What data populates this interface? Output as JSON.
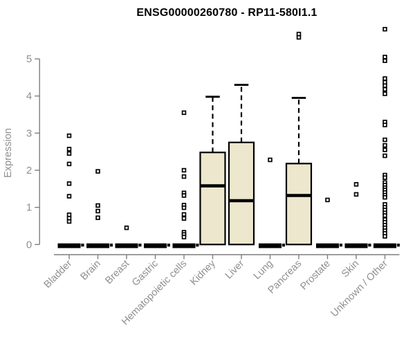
{
  "page": {
    "background": "#ffffff"
  },
  "chart_data": {
    "type": "boxplot",
    "title": "ENSG00000260780 - RP11-580I1.1",
    "ylabel": "Expression",
    "xlabel": "",
    "ylim": [
      0,
      5.9
    ],
    "yticks": [
      0,
      1,
      2,
      3,
      4,
      5
    ],
    "grid": false,
    "legend": "none",
    "colors": {
      "box_fill": "#ece7cd",
      "box_line": "#000000",
      "axis": "#7d7d7d",
      "label": "#8f8f8f",
      "title": "#000000",
      "outlier_fill": "#ffffff",
      "outlier_stroke": "#000000"
    },
    "categories": [
      "Bladder",
      "Brain",
      "Breast",
      "Gastric",
      "Hematopoietic cells",
      "Kidney",
      "Liver",
      "Lung",
      "Pancreas",
      "Prostate",
      "Skin",
      "Unknown / Other"
    ],
    "groups": [
      {
        "name": "Bladder",
        "q1": 0,
        "median": 0,
        "q3": 0,
        "whisker_low": 0,
        "whisker_high": 0,
        "outliers": [
          2.93,
          2.57,
          2.45,
          2.17,
          1.64,
          1.3,
          0.8,
          0.71,
          0.62
        ]
      },
      {
        "name": "Brain",
        "q1": 0,
        "median": 0,
        "q3": 0,
        "whisker_low": 0,
        "whisker_high": 0,
        "outliers": [
          1.97,
          1.05,
          0.9,
          0.72
        ]
      },
      {
        "name": "Breast",
        "q1": 0,
        "median": 0,
        "q3": 0,
        "whisker_low": 0,
        "whisker_high": 0,
        "outliers": [
          0.45
        ]
      },
      {
        "name": "Gastric",
        "q1": 0,
        "median": 0,
        "q3": 0,
        "whisker_low": 0,
        "whisker_high": 0,
        "outliers": []
      },
      {
        "name": "Hematopoietic cells",
        "q1": 0,
        "median": 0,
        "q3": 0,
        "whisker_low": 0,
        "whisker_high": 0,
        "outliers": [
          3.55,
          2.0,
          1.83,
          1.39,
          1.32,
          1.06,
          0.99,
          0.81,
          0.7,
          0.33,
          0.27,
          0.2
        ]
      },
      {
        "name": "Kidney",
        "q1": 0,
        "median": 1.58,
        "q3": 2.48,
        "whisker_low": 0,
        "whisker_high": 3.98,
        "outliers": []
      },
      {
        "name": "Liver",
        "q1": 0,
        "median": 1.18,
        "q3": 2.75,
        "whisker_low": 0,
        "whisker_high": 4.3,
        "outliers": []
      },
      {
        "name": "Lung",
        "q1": 0,
        "median": 0,
        "q3": 0,
        "whisker_low": 0,
        "whisker_high": 0,
        "outliers": [
          2.28
        ]
      },
      {
        "name": "Pancreas",
        "q1": 0,
        "median": 1.32,
        "q3": 2.18,
        "whisker_low": 0,
        "whisker_high": 3.95,
        "outliers": [
          5.67,
          5.58
        ]
      },
      {
        "name": "Prostate",
        "q1": 0,
        "median": 0,
        "q3": 0,
        "whisker_low": 0,
        "whisker_high": 0,
        "outliers": [
          1.2
        ]
      },
      {
        "name": "Skin",
        "q1": 0,
        "median": 0,
        "q3": 0,
        "whisker_low": 0,
        "whisker_high": 0,
        "outliers": [
          1.62,
          1.35
        ]
      },
      {
        "name": "Unknown / Other",
        "q1": 0,
        "median": 0,
        "q3": 0,
        "whisker_low": 0,
        "whisker_high": 0,
        "outliers": [
          5.8,
          5.05,
          4.95,
          4.47,
          4.37,
          4.28,
          4.18,
          4.06,
          3.3,
          3.22,
          2.82,
          2.67,
          2.55,
          2.39,
          1.87,
          1.8,
          1.67,
          1.6,
          1.53,
          1.47,
          1.4,
          1.33,
          1.27,
          1.08,
          1.0,
          0.93,
          0.85,
          0.78,
          0.67,
          0.6,
          0.52,
          0.45,
          0.37,
          0.3,
          0.22
        ]
      }
    ]
  }
}
